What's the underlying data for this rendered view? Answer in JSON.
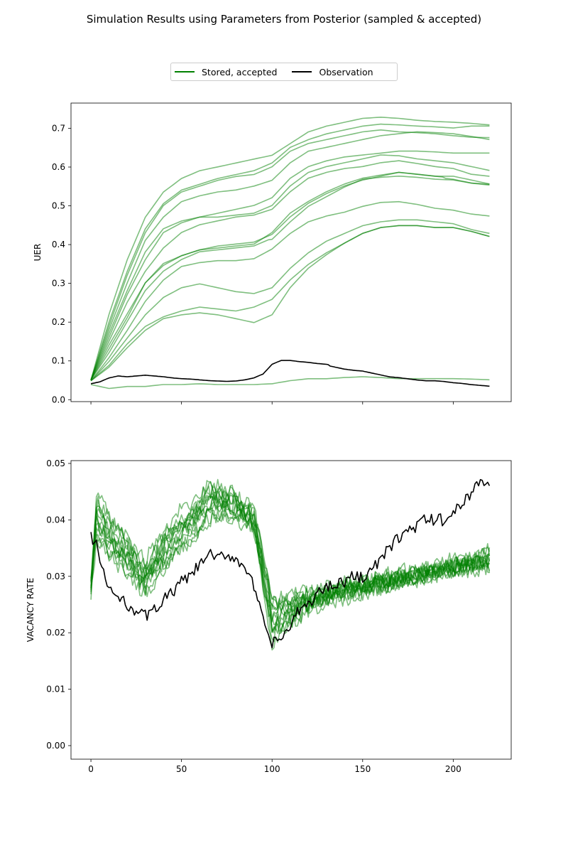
{
  "figure_title": "Simulation Results using Parameters from Posterior (sampled & accepted)",
  "colors": {
    "stored": "#008000",
    "observation": "#000000"
  },
  "legend": [
    {
      "label": "Stored, accepted",
      "color": "#008000"
    },
    {
      "label": "Observation",
      "color": "#000000"
    }
  ],
  "chart_data": [
    {
      "type": "line",
      "ylabel": "UER",
      "xlim": [
        -11,
        232
      ],
      "ylim": [
        -0.005,
        0.765
      ],
      "x_ticks": [
        0,
        50,
        100,
        150,
        200
      ],
      "x_tick_labels_visible": false,
      "y_ticks": [
        0.0,
        0.1,
        0.2,
        0.3,
        0.4,
        0.5,
        0.6,
        0.7
      ],
      "y_tick_labels": [
        "0.0",
        "0.1",
        "0.2",
        "0.3",
        "0.4",
        "0.5",
        "0.6",
        "0.7"
      ],
      "x_anchor": [
        0,
        10,
        20,
        30,
        40,
        50,
        60,
        70,
        80,
        90,
        100,
        110,
        120,
        130,
        140,
        150,
        160,
        170,
        180,
        190,
        200,
        210,
        220
      ],
      "stored_series": [
        [
          0.05,
          0.22,
          0.36,
          0.47,
          0.535,
          0.57,
          0.59,
          0.6,
          0.61,
          0.62,
          0.63,
          0.66,
          0.69,
          0.705,
          0.715,
          0.725,
          0.728,
          0.725,
          0.72,
          0.717,
          0.715,
          0.712,
          0.708
        ],
        [
          0.05,
          0.2,
          0.33,
          0.44,
          0.505,
          0.54,
          0.555,
          0.57,
          0.58,
          0.59,
          0.61,
          0.65,
          0.67,
          0.685,
          0.695,
          0.705,
          0.71,
          0.708,
          0.705,
          0.703,
          0.7,
          0.705,
          0.705
        ],
        [
          0.05,
          0.19,
          0.32,
          0.43,
          0.5,
          0.535,
          0.55,
          0.565,
          0.575,
          0.58,
          0.6,
          0.64,
          0.66,
          0.67,
          0.68,
          0.69,
          0.695,
          0.69,
          0.688,
          0.685,
          0.68,
          0.676,
          0.675
        ],
        [
          0.05,
          0.18,
          0.3,
          0.41,
          0.47,
          0.51,
          0.525,
          0.535,
          0.54,
          0.55,
          0.565,
          0.61,
          0.64,
          0.65,
          0.66,
          0.67,
          0.68,
          0.685,
          0.69,
          0.688,
          0.685,
          0.678,
          0.67
        ],
        [
          0.05,
          0.17,
          0.28,
          0.38,
          0.44,
          0.46,
          0.47,
          0.48,
          0.49,
          0.5,
          0.52,
          0.57,
          0.6,
          0.615,
          0.625,
          0.63,
          0.635,
          0.64,
          0.64,
          0.638,
          0.635,
          0.635,
          0.635
        ],
        [
          0.05,
          0.16,
          0.27,
          0.36,
          0.43,
          0.455,
          0.47,
          0.47,
          0.475,
          0.48,
          0.5,
          0.55,
          0.585,
          0.6,
          0.61,
          0.62,
          0.63,
          0.628,
          0.62,
          0.615,
          0.61,
          0.6,
          0.59
        ],
        [
          0.05,
          0.15,
          0.25,
          0.33,
          0.39,
          0.43,
          0.45,
          0.46,
          0.47,
          0.475,
          0.49,
          0.535,
          0.57,
          0.585,
          0.595,
          0.6,
          0.61,
          0.615,
          0.608,
          0.6,
          0.595,
          0.58,
          0.575
        ],
        [
          0.05,
          0.14,
          0.22,
          0.3,
          0.35,
          0.37,
          0.385,
          0.39,
          0.395,
          0.4,
          0.43,
          0.48,
          0.51,
          0.535,
          0.555,
          0.57,
          0.578,
          0.585,
          0.58,
          0.575,
          0.575,
          0.565,
          0.555
        ],
        [
          0.05,
          0.13,
          0.21,
          0.3,
          0.345,
          0.37,
          0.385,
          0.395,
          0.4,
          0.405,
          0.425,
          0.47,
          0.505,
          0.53,
          0.55,
          0.565,
          0.575,
          0.585,
          0.58,
          0.575,
          0.57,
          0.56,
          0.555
        ],
        [
          0.05,
          0.12,
          0.2,
          0.28,
          0.33,
          0.36,
          0.38,
          0.385,
          0.39,
          0.395,
          0.415,
          0.46,
          0.5,
          0.525,
          0.55,
          0.57,
          0.575,
          0.578,
          0.575,
          0.57,
          0.568,
          0.56,
          0.557
        ],
        [
          0.05,
          0.11,
          0.18,
          0.255,
          0.31,
          0.345,
          0.355,
          0.36,
          0.36,
          0.365,
          0.39,
          0.43,
          0.46,
          0.475,
          0.485,
          0.5,
          0.51,
          0.512,
          0.505,
          0.495,
          0.49,
          0.48,
          0.475
        ],
        [
          0.05,
          0.1,
          0.16,
          0.22,
          0.265,
          0.29,
          0.3,
          0.29,
          0.28,
          0.275,
          0.29,
          0.34,
          0.38,
          0.41,
          0.43,
          0.45,
          0.46,
          0.465,
          0.465,
          0.46,
          0.455,
          0.44,
          0.43
        ],
        [
          0.05,
          0.09,
          0.145,
          0.19,
          0.215,
          0.23,
          0.24,
          0.235,
          0.23,
          0.24,
          0.26,
          0.31,
          0.35,
          0.38,
          0.405,
          0.43,
          0.445,
          0.45,
          0.45,
          0.445,
          0.445,
          0.435,
          0.422
        ],
        [
          0.05,
          0.085,
          0.135,
          0.18,
          0.21,
          0.22,
          0.225,
          0.22,
          0.21,
          0.2,
          0.22,
          0.29,
          0.34,
          0.375,
          0.405,
          0.43,
          0.445,
          0.45,
          0.45,
          0.445,
          0.445,
          0.435,
          0.422
        ],
        [
          0.04,
          0.03,
          0.035,
          0.035,
          0.04,
          0.04,
          0.042,
          0.04,
          0.04,
          0.04,
          0.042,
          0.05,
          0.055,
          0.055,
          0.058,
          0.06,
          0.058,
          0.055,
          0.055,
          0.055,
          0.055,
          0.054,
          0.052
        ]
      ],
      "observation": {
        "x": [
          0,
          5,
          10,
          15,
          20,
          25,
          30,
          35,
          40,
          45,
          50,
          55,
          60,
          65,
          70,
          75,
          80,
          85,
          90,
          95,
          100,
          105,
          110,
          115,
          120,
          125,
          130,
          135,
          140,
          145,
          150,
          155,
          160,
          165,
          170,
          175,
          180,
          185,
          190,
          195,
          200,
          205,
          210,
          215,
          220
        ],
        "y": [
          0.04,
          0.045,
          0.055,
          0.06,
          0.058,
          0.06,
          0.062,
          0.06,
          0.058,
          0.055,
          0.053,
          0.052,
          0.05,
          0.048,
          0.047,
          0.046,
          0.047,
          0.05,
          0.055,
          0.065,
          0.09,
          0.1,
          0.1,
          0.097,
          0.095,
          0.092,
          0.09,
          0.085,
          0.08,
          0.077,
          0.075,
          0.07,
          0.065,
          0.06,
          0.058,
          0.055,
          0.052,
          0.05,
          0.05,
          0.048,
          0.045,
          0.043,
          0.04,
          0.038,
          0.036
        ]
      }
    },
    {
      "type": "line",
      "xlabel": "",
      "ylabel": "VACANCY RATE",
      "xlim": [
        -11,
        232
      ],
      "ylim": [
        -0.0024,
        0.0505
      ],
      "x_ticks": [
        0,
        50,
        100,
        150,
        200
      ],
      "x_tick_labels": [
        "0",
        "50",
        "100",
        "150",
        "200"
      ],
      "y_ticks": [
        0.0,
        0.01,
        0.02,
        0.03,
        0.04,
        0.05
      ],
      "y_tick_labels": [
        "0.00",
        "0.01",
        "0.02",
        "0.03",
        "0.04",
        "0.05"
      ],
      "stored_anchor_x": [
        0,
        3,
        10,
        20,
        30,
        40,
        50,
        60,
        65,
        70,
        80,
        90,
        95,
        100,
        110,
        120,
        130,
        140,
        150,
        160,
        170,
        180,
        190,
        200,
        210,
        220
      ],
      "stored_series": [
        [
          0.027,
          0.045,
          0.041,
          0.036,
          0.032,
          0.036,
          0.04,
          0.043,
          0.047,
          0.044,
          0.043,
          0.04,
          0.03,
          0.02,
          0.023,
          0.025,
          0.027,
          0.028,
          0.028,
          0.029,
          0.03,
          0.031,
          0.031,
          0.032,
          0.033,
          0.034
        ],
        [
          0.028,
          0.043,
          0.038,
          0.034,
          0.03,
          0.038,
          0.042,
          0.044,
          0.046,
          0.045,
          0.043,
          0.039,
          0.028,
          0.018,
          0.021,
          0.024,
          0.026,
          0.028,
          0.029,
          0.03,
          0.031,
          0.031,
          0.032,
          0.032,
          0.033,
          0.033
        ],
        [
          0.029,
          0.041,
          0.036,
          0.033,
          0.029,
          0.035,
          0.039,
          0.042,
          0.045,
          0.046,
          0.044,
          0.04,
          0.032,
          0.022,
          0.025,
          0.027,
          0.028,
          0.028,
          0.029,
          0.029,
          0.03,
          0.031,
          0.032,
          0.033,
          0.033,
          0.034
        ],
        [
          0.027,
          0.04,
          0.037,
          0.035,
          0.031,
          0.034,
          0.037,
          0.04,
          0.043,
          0.044,
          0.045,
          0.041,
          0.034,
          0.024,
          0.026,
          0.027,
          0.027,
          0.028,
          0.028,
          0.029,
          0.03,
          0.031,
          0.031,
          0.032,
          0.033,
          0.035
        ],
        [
          0.028,
          0.039,
          0.035,
          0.032,
          0.028,
          0.033,
          0.038,
          0.041,
          0.044,
          0.045,
          0.044,
          0.042,
          0.033,
          0.021,
          0.023,
          0.025,
          0.026,
          0.027,
          0.028,
          0.029,
          0.03,
          0.03,
          0.031,
          0.032,
          0.032,
          0.033
        ],
        [
          0.027,
          0.042,
          0.039,
          0.037,
          0.033,
          0.037,
          0.04,
          0.042,
          0.044,
          0.043,
          0.042,
          0.038,
          0.029,
          0.019,
          0.022,
          0.025,
          0.027,
          0.029,
          0.029,
          0.03,
          0.03,
          0.031,
          0.031,
          0.032,
          0.032,
          0.033
        ],
        [
          0.029,
          0.038,
          0.034,
          0.031,
          0.028,
          0.032,
          0.036,
          0.039,
          0.041,
          0.042,
          0.043,
          0.041,
          0.035,
          0.025,
          0.027,
          0.028,
          0.028,
          0.028,
          0.029,
          0.029,
          0.03,
          0.03,
          0.031,
          0.031,
          0.032,
          0.032
        ],
        [
          0.028,
          0.044,
          0.04,
          0.036,
          0.03,
          0.036,
          0.039,
          0.041,
          0.043,
          0.044,
          0.042,
          0.039,
          0.031,
          0.023,
          0.024,
          0.026,
          0.027,
          0.028,
          0.028,
          0.029,
          0.03,
          0.03,
          0.031,
          0.032,
          0.033,
          0.034
        ],
        [
          0.027,
          0.037,
          0.034,
          0.03,
          0.027,
          0.031,
          0.035,
          0.038,
          0.04,
          0.041,
          0.04,
          0.038,
          0.033,
          0.026,
          0.026,
          0.026,
          0.027,
          0.027,
          0.028,
          0.028,
          0.029,
          0.03,
          0.03,
          0.031,
          0.031,
          0.032
        ],
        [
          0.028,
          0.04,
          0.036,
          0.033,
          0.029,
          0.034,
          0.038,
          0.04,
          0.042,
          0.042,
          0.041,
          0.039,
          0.03,
          0.022,
          0.024,
          0.026,
          0.027,
          0.028,
          0.028,
          0.029,
          0.029,
          0.03,
          0.031,
          0.031,
          0.032,
          0.033
        ],
        [
          0.027,
          0.036,
          0.034,
          0.032,
          0.029,
          0.033,
          0.036,
          0.039,
          0.041,
          0.041,
          0.041,
          0.04,
          0.032,
          0.025,
          0.025,
          0.026,
          0.026,
          0.027,
          0.027,
          0.028,
          0.028,
          0.029,
          0.03,
          0.031,
          0.032,
          0.033
        ],
        [
          0.028,
          0.041,
          0.038,
          0.035,
          0.031,
          0.035,
          0.039,
          0.041,
          0.043,
          0.043,
          0.042,
          0.039,
          0.029,
          0.02,
          0.022,
          0.024,
          0.025,
          0.026,
          0.027,
          0.028,
          0.029,
          0.03,
          0.031,
          0.031,
          0.032,
          0.032
        ],
        [
          0.029,
          0.039,
          0.036,
          0.034,
          0.03,
          0.032,
          0.035,
          0.038,
          0.04,
          0.041,
          0.042,
          0.041,
          0.034,
          0.024,
          0.025,
          0.026,
          0.027,
          0.027,
          0.028,
          0.028,
          0.029,
          0.03,
          0.03,
          0.031,
          0.031,
          0.031
        ],
        [
          0.027,
          0.043,
          0.037,
          0.033,
          0.029,
          0.036,
          0.04,
          0.043,
          0.045,
          0.044,
          0.043,
          0.04,
          0.031,
          0.021,
          0.023,
          0.025,
          0.026,
          0.027,
          0.028,
          0.029,
          0.029,
          0.03,
          0.031,
          0.032,
          0.032,
          0.033
        ]
      ],
      "observation": {
        "x": [
          0,
          3,
          6,
          10,
          15,
          20,
          25,
          30,
          35,
          40,
          45,
          50,
          55,
          60,
          65,
          70,
          75,
          80,
          85,
          90,
          95,
          100,
          105,
          110,
          115,
          120,
          125,
          130,
          135,
          140,
          145,
          150,
          155,
          160,
          165,
          170,
          175,
          180,
          185,
          190,
          195,
          200,
          205,
          210,
          215,
          220
        ],
        "y": [
          0.037,
          0.036,
          0.031,
          0.028,
          0.026,
          0.025,
          0.024,
          0.023,
          0.024,
          0.026,
          0.027,
          0.029,
          0.03,
          0.032,
          0.034,
          0.033,
          0.034,
          0.033,
          0.032,
          0.028,
          0.022,
          0.018,
          0.019,
          0.021,
          0.024,
          0.025,
          0.027,
          0.028,
          0.029,
          0.029,
          0.03,
          0.03,
          0.031,
          0.033,
          0.035,
          0.037,
          0.038,
          0.039,
          0.04,
          0.04,
          0.04,
          0.041,
          0.043,
          0.045,
          0.047,
          0.046
        ]
      }
    }
  ]
}
